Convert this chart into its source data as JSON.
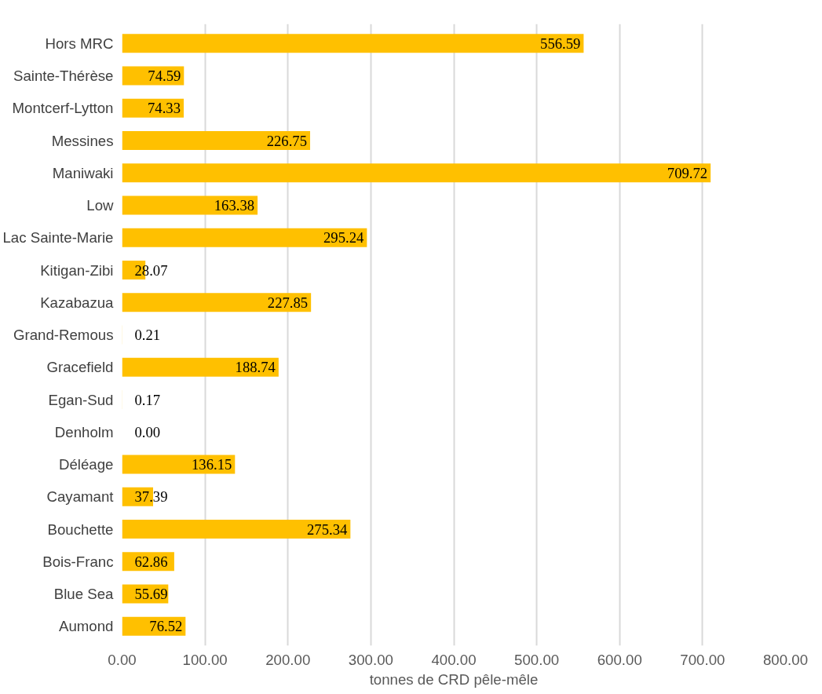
{
  "chart_data": {
    "type": "bar",
    "orientation": "horizontal",
    "xlabel": "tonnes de CRD pêle-mêle",
    "categories": [
      "Hors MRC",
      "Sainte-Thérèse",
      "Montcerf-Lytton",
      "Messines",
      "Maniwaki",
      "Low",
      "Lac Sainte-Marie",
      "Kitigan-Zibi",
      "Kazabazua",
      "Grand-Remous",
      "Gracefield",
      "Egan-Sud",
      "Denholm",
      "Déléage",
      "Cayamant",
      "Bouchette",
      "Bois-Franc",
      "Blue Sea",
      "Aumond"
    ],
    "values": [
      556.59,
      74.59,
      74.33,
      226.75,
      709.72,
      163.38,
      295.24,
      28.07,
      227.85,
      0.21,
      188.74,
      0.17,
      0.0,
      136.15,
      37.39,
      275.34,
      62.86,
      55.69,
      76.52
    ],
    "value_labels": [
      "556.59",
      "74.59",
      "74.33",
      "226.75",
      "709.72",
      "163.38",
      "295.24",
      "28.07",
      "227.85",
      "0.21",
      "188.74",
      "0.17",
      "0.00",
      "136.15",
      "37.39",
      "275.34",
      "62.86",
      "55.69",
      "76.52"
    ],
    "color": "#ffc000",
    "xlim": [
      0,
      800
    ],
    "xticks": [
      {
        "value": 0,
        "label": "0.00"
      },
      {
        "value": 100,
        "label": "100.00"
      },
      {
        "value": 200,
        "label": "200.00"
      },
      {
        "value": 300,
        "label": "300.00"
      },
      {
        "value": 400,
        "label": "400.00"
      },
      {
        "value": 500,
        "label": "500.00"
      },
      {
        "value": 600,
        "label": "600.00"
      },
      {
        "value": 700,
        "label": "700.00"
      },
      {
        "value": 800,
        "label": "800.00"
      }
    ],
    "grid": "x"
  }
}
